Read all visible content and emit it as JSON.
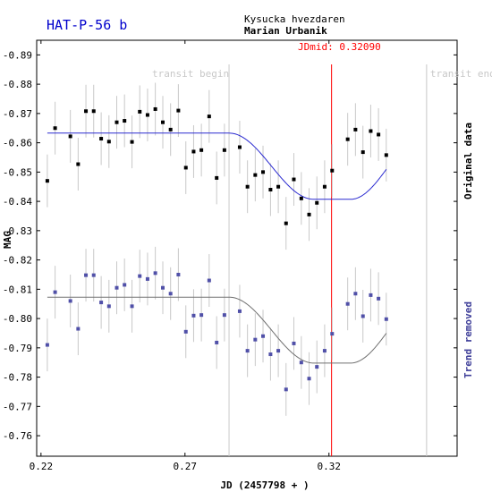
{
  "chart_data": {
    "type": "scatter",
    "title": "HAT-P-56 b",
    "observatory": "Kysucka hvezdaren",
    "observer": "Marian Urbanik",
    "xlabel": "JD (2457798 + )",
    "ylabel": "MAG",
    "right_label_top": "Original data",
    "right_label_bottom": "Trend removed",
    "jdmid_label": "JDmid: 0.32090",
    "transit_begin_label": "transit begin",
    "transit_end_label": "transit end",
    "jdmid": 0.3209,
    "transit_begin": 0.2853,
    "transit_end": 0.3539,
    "xlim": [
      0.2185,
      0.3645
    ],
    "ylim": [
      -0.895,
      -0.753
    ],
    "x_ticks": [
      {
        "value": 0.22,
        "label": "0.22"
      },
      {
        "value": 0.27,
        "label": "0.27"
      },
      {
        "value": 0.32,
        "label": "0.32"
      }
    ],
    "y_ticks": [
      {
        "value": -0.89,
        "label": "-0.89"
      },
      {
        "value": -0.88,
        "label": "-0.88"
      },
      {
        "value": -0.87,
        "label": "-0.87"
      },
      {
        "value": -0.86,
        "label": "-0.86"
      },
      {
        "value": -0.85,
        "label": "-0.85"
      },
      {
        "value": -0.84,
        "label": "-0.84"
      },
      {
        "value": -0.83,
        "label": "-0.83"
      },
      {
        "value": -0.82,
        "label": "-0.82"
      },
      {
        "value": -0.81,
        "label": "-0.81"
      },
      {
        "value": -0.8,
        "label": "-0.80"
      },
      {
        "value": -0.79,
        "label": "-0.79"
      },
      {
        "value": -0.78,
        "label": "-0.78"
      },
      {
        "value": -0.77,
        "label": "-0.77"
      },
      {
        "value": -0.76,
        "label": "-0.76"
      }
    ],
    "grid": false,
    "colors": {
      "title": "#0000cc",
      "original_points": "#000000",
      "original_model": "#2a2ad0",
      "detrended_points": "#5050a8",
      "detrended_model": "#707070",
      "jdmid_line": "#ff0000",
      "transit_lines": "#c8c8c8",
      "error_bars": "#c8c8c8",
      "right_label_bottom": "#40409a"
    },
    "model_original": {
      "out_of_transit": -0.8633,
      "in_transit": -0.8407,
      "ingress_start": 0.2853,
      "flat_start": 0.3148,
      "flat_end": 0.3275,
      "egress_end": 0.3539
    },
    "model_detrended": {
      "out_of_transit": -0.8073,
      "in_transit": -0.7848,
      "ingress_start": 0.2853,
      "flat_start": 0.3148,
      "flat_end": 0.3275,
      "egress_end": 0.3539
    },
    "series": [
      {
        "name": "Original data",
        "error": 0.009,
        "points": [
          [
            0.2222,
            -0.847
          ],
          [
            0.2249,
            -0.865
          ],
          [
            0.2302,
            -0.8622
          ],
          [
            0.2329,
            -0.8527
          ],
          [
            0.2356,
            -0.8708
          ],
          [
            0.2383,
            -0.8708
          ],
          [
            0.2409,
            -0.8614
          ],
          [
            0.2436,
            -0.8604
          ],
          [
            0.2463,
            -0.867
          ],
          [
            0.249,
            -0.8675
          ],
          [
            0.2516,
            -0.8603
          ],
          [
            0.2543,
            -0.8706
          ],
          [
            0.257,
            -0.8695
          ],
          [
            0.2597,
            -0.8715
          ],
          [
            0.2623,
            -0.867
          ],
          [
            0.265,
            -0.8645
          ],
          [
            0.2677,
            -0.871
          ],
          [
            0.2703,
            -0.8515
          ],
          [
            0.273,
            -0.857
          ],
          [
            0.2757,
            -0.8575
          ],
          [
            0.2784,
            -0.869
          ],
          [
            0.281,
            -0.848
          ],
          [
            0.2837,
            -0.8575
          ],
          [
            0.289,
            -0.8585
          ],
          [
            0.2917,
            -0.845
          ],
          [
            0.2944,
            -0.849
          ],
          [
            0.2971,
            -0.85
          ],
          [
            0.2997,
            -0.844
          ],
          [
            0.3024,
            -0.845
          ],
          [
            0.3051,
            -0.8325
          ],
          [
            0.3078,
            -0.8475
          ],
          [
            0.3104,
            -0.841
          ],
          [
            0.3131,
            -0.8355
          ],
          [
            0.3158,
            -0.8395
          ],
          [
            0.3185,
            -0.845
          ],
          [
            0.3211,
            -0.8505
          ],
          [
            0.3265,
            -0.8612
          ],
          [
            0.3292,
            -0.8645
          ],
          [
            0.3318,
            -0.8568
          ],
          [
            0.3345,
            -0.864
          ],
          [
            0.3372,
            -0.8628
          ],
          [
            0.3399,
            -0.8558
          ]
        ]
      },
      {
        "name": "Trend removed",
        "error": 0.009,
        "points": [
          [
            0.2222,
            -0.791
          ],
          [
            0.2249,
            -0.809
          ],
          [
            0.2302,
            -0.806
          ],
          [
            0.2329,
            -0.7965
          ],
          [
            0.2356,
            -0.8148
          ],
          [
            0.2383,
            -0.8148
          ],
          [
            0.2409,
            -0.8055
          ],
          [
            0.2436,
            -0.8042
          ],
          [
            0.2463,
            -0.8105
          ],
          [
            0.249,
            -0.8115
          ],
          [
            0.2516,
            -0.8042
          ],
          [
            0.2543,
            -0.8145
          ],
          [
            0.257,
            -0.8135
          ],
          [
            0.2597,
            -0.8155
          ],
          [
            0.2623,
            -0.8105
          ],
          [
            0.265,
            -0.8085
          ],
          [
            0.2677,
            -0.815
          ],
          [
            0.2703,
            -0.7955
          ],
          [
            0.273,
            -0.801
          ],
          [
            0.2757,
            -0.8012
          ],
          [
            0.2784,
            -0.813
          ],
          [
            0.281,
            -0.7918
          ],
          [
            0.2837,
            -0.8012
          ],
          [
            0.289,
            -0.8025
          ],
          [
            0.2917,
            -0.789
          ],
          [
            0.2944,
            -0.7928
          ],
          [
            0.2971,
            -0.794
          ],
          [
            0.2997,
            -0.7878
          ],
          [
            0.3024,
            -0.789
          ],
          [
            0.3051,
            -0.7758
          ],
          [
            0.3078,
            -0.7915
          ],
          [
            0.3104,
            -0.785
          ],
          [
            0.3131,
            -0.7795
          ],
          [
            0.3158,
            -0.7835
          ],
          [
            0.3185,
            -0.789
          ],
          [
            0.3211,
            -0.7948
          ],
          [
            0.3265,
            -0.805
          ],
          [
            0.3292,
            -0.8085
          ],
          [
            0.3318,
            -0.8008
          ],
          [
            0.3345,
            -0.808
          ],
          [
            0.3372,
            -0.8068
          ],
          [
            0.3399,
            -0.7998
          ]
        ]
      }
    ]
  }
}
